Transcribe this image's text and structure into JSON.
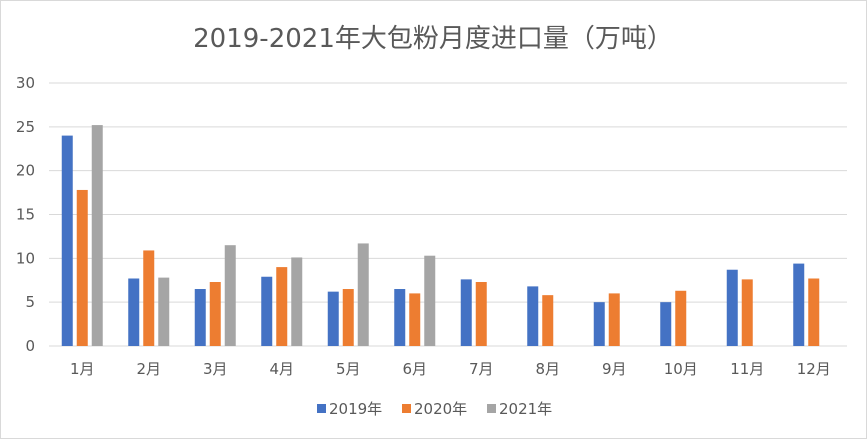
{
  "chart_data": {
    "type": "bar",
    "title": "2019-2021年大包粉月度进口量（万吨）",
    "categories": [
      "1月",
      "2月",
      "3月",
      "4月",
      "5月",
      "6月",
      "7月",
      "8月",
      "9月",
      "10月",
      "11月",
      "12月"
    ],
    "series": [
      {
        "name": "2019年",
        "color": "#4472c4",
        "values": [
          24.0,
          7.7,
          6.5,
          7.9,
          6.2,
          6.5,
          7.6,
          6.8,
          5.0,
          5.0,
          8.7,
          9.4
        ]
      },
      {
        "name": "2020年",
        "color": "#ed7d31",
        "values": [
          17.8,
          10.9,
          7.3,
          9.0,
          6.5,
          6.0,
          7.3,
          5.8,
          6.0,
          6.3,
          7.6,
          7.7
        ]
      },
      {
        "name": "2021年",
        "color": "#a5a5a5",
        "values": [
          25.2,
          7.8,
          11.5,
          10.1,
          11.7,
          10.3,
          null,
          null,
          null,
          null,
          null,
          null
        ]
      }
    ],
    "ylim": [
      0,
      30
    ],
    "yticks": [
      0,
      5,
      10,
      15,
      20,
      25,
      30
    ],
    "grid": true,
    "legend": "bottom"
  }
}
